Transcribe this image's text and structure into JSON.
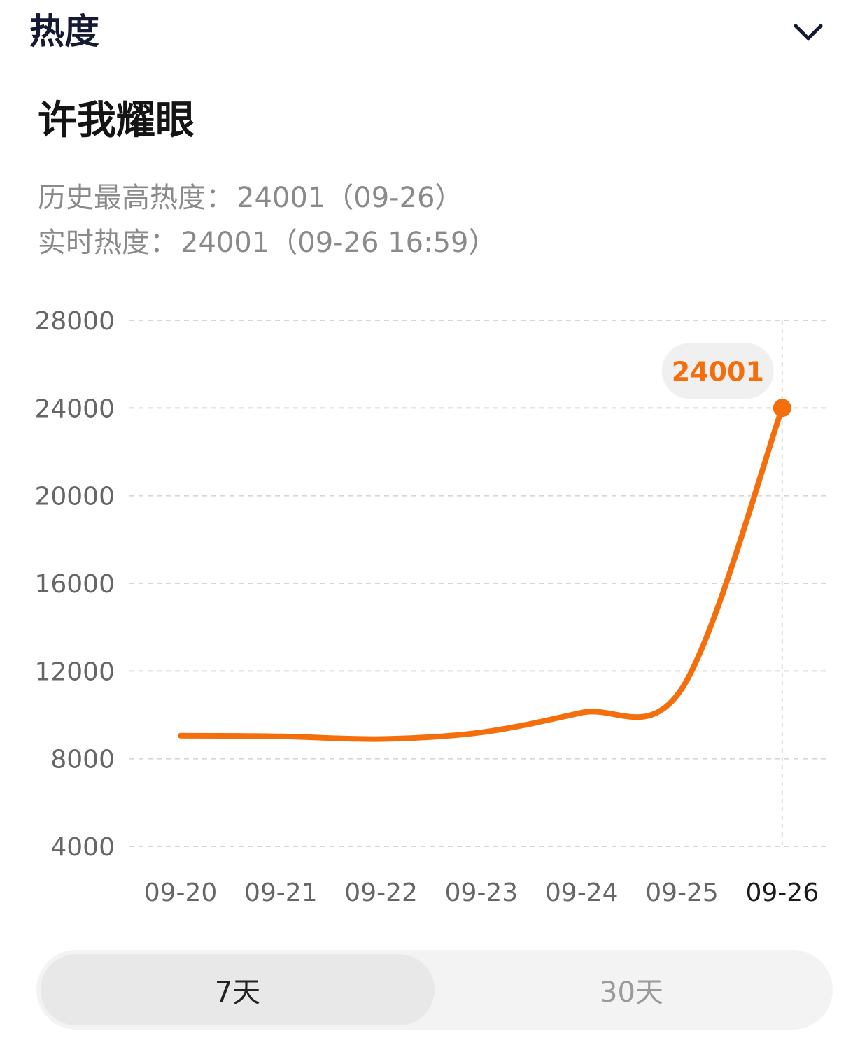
{
  "header": {
    "section_title": "热度",
    "toggle_icon": "chevron-down-icon"
  },
  "topic": {
    "title": "许我耀眼"
  },
  "stats": {
    "peak_label": "历史最高热度：",
    "peak_value": "24001（09-26）",
    "live_label": "实时热度：",
    "live_value": "24001（09-26 16:59）"
  },
  "chart_data": {
    "type": "line",
    "categories": [
      "09-20",
      "09-21",
      "09-22",
      "09-23",
      "09-24",
      "09-25",
      "09-26"
    ],
    "series": [
      {
        "values": [
          9050,
          9020,
          8900,
          9200,
          10100,
          11200,
          24001
        ],
        "color": "#f56e0c"
      }
    ],
    "y_ticks": [
      28000,
      24000,
      20000,
      16000,
      12000,
      8000,
      4000
    ],
    "ylim": [
      4000,
      28000
    ],
    "grid": true,
    "highlight": {
      "category": "09-26",
      "label": "24001"
    }
  },
  "range_tabs": [
    {
      "label": "7天",
      "active": true
    },
    {
      "label": "30天",
      "active": false
    }
  ],
  "colors": {
    "accent": "#f56e0c",
    "title": "#141a33",
    "muted": "#8a8a8a",
    "grid": "#d6d6d6"
  }
}
